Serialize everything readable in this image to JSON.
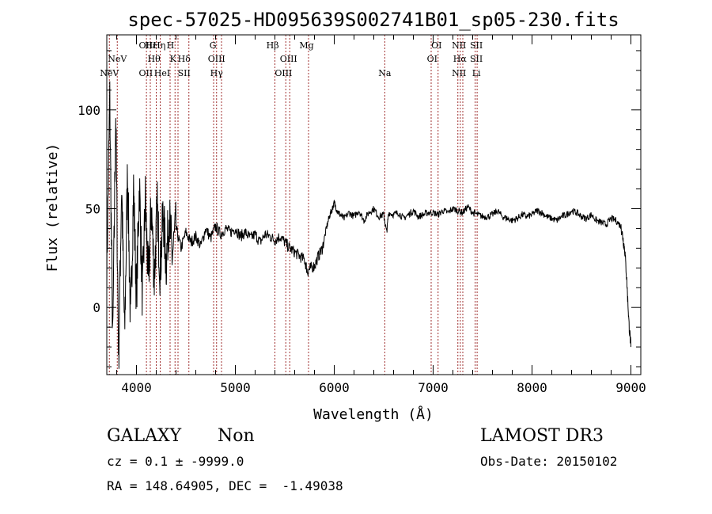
{
  "chart_data": {
    "type": "line",
    "title": "spec-57025-HD095639S002741B01_sp05-230.fits",
    "xlabel": "Wavelength (Å)",
    "ylabel": "Flux (relative)",
    "xlim": [
      3700,
      9100
    ],
    "ylim": [
      -34,
      138
    ],
    "xticks": [
      {
        "value": 4000,
        "label": "4000"
      },
      {
        "value": 5000,
        "label": "5000"
      },
      {
        "value": 6000,
        "label": "6000"
      },
      {
        "value": 7000,
        "label": "7000"
      },
      {
        "value": 8000,
        "label": "8000"
      },
      {
        "value": 9000,
        "label": "9000"
      }
    ],
    "yticks": [
      {
        "value": 0,
        "label": "0"
      },
      {
        "value": 50,
        "label": "50"
      },
      {
        "value": 100,
        "label": "100"
      }
    ],
    "grid": false,
    "line_color": "#000000",
    "marker_color": "#a03030",
    "series": [
      {
        "x": [
          3700,
          3730,
          3760,
          3790,
          3820,
          3850,
          3880,
          3910,
          3940,
          3970,
          4000,
          4030,
          4060,
          4090,
          4120,
          4150,
          4180,
          4210,
          4240,
          4270,
          4300,
          4330,
          4360,
          4400,
          4450,
          4500,
          4550,
          4600,
          4650,
          4700,
          4750,
          4800,
          4850,
          4900,
          4950,
          5000,
          5050,
          5100,
          5150,
          5200,
          5250,
          5300,
          5350,
          5400,
          5450,
          5500,
          5550,
          5600,
          5650,
          5700,
          5730,
          5760,
          5800,
          5840,
          5880,
          5920,
          5950,
          5980,
          6000,
          6030,
          6060,
          6100,
          6150,
          6200,
          6250,
          6300,
          6350,
          6400,
          6450,
          6500,
          6530,
          6550,
          6600,
          6650,
          6700,
          6750,
          6800,
          6850,
          6900,
          6950,
          7000,
          7050,
          7100,
          7150,
          7200,
          7250,
          7300,
          7350,
          7400,
          7450,
          7500,
          7550,
          7600,
          7650,
          7700,
          7750,
          7800,
          7850,
          7900,
          7950,
          8000,
          8050,
          8100,
          8150,
          8200,
          8250,
          8300,
          8350,
          8400,
          8450,
          8500,
          8550,
          8600,
          8650,
          8700,
          8750,
          8800,
          8850,
          8900,
          8920,
          8940,
          8960,
          8980,
          9000
        ],
        "y": [
          20,
          105,
          -20,
          98,
          -25,
          62,
          -15,
          70,
          -10,
          60,
          5,
          62,
          5,
          55,
          12,
          52,
          15,
          50,
          18,
          48,
          22,
          47,
          26,
          40,
          30,
          38,
          33,
          36,
          31,
          40,
          35,
          41,
          37,
          40,
          38,
          40,
          36,
          38,
          35,
          37,
          33,
          37,
          36,
          34,
          36,
          33,
          30,
          28,
          26,
          24,
          18,
          20,
          21,
          26,
          30,
          40,
          46,
          50,
          53,
          49,
          47,
          45,
          48,
          46,
          49,
          44,
          48,
          50,
          46,
          47,
          38,
          48,
          47,
          48,
          45,
          47,
          49,
          46,
          47,
          48,
          48,
          47,
          49,
          48,
          50,
          49,
          48,
          51,
          48,
          47,
          46,
          46,
          47,
          49,
          46,
          45,
          44,
          45,
          47,
          46,
          47,
          49,
          48,
          46,
          45,
          44,
          46,
          47,
          49,
          48,
          46,
          45,
          47,
          44,
          43,
          42,
          45,
          44,
          41,
          35,
          28,
          12,
          -8,
          -20
        ]
      }
    ],
    "lines": [
      {
        "label": "NeV",
        "wavelength": 3726,
        "row": 2
      },
      {
        "label": "NeV",
        "wavelength": 3806,
        "row": 1
      },
      {
        "label": "OII",
        "wavelength": 4095,
        "row": 0
      },
      {
        "label": "OII",
        "wavelength": 4095,
        "row": 2
      },
      {
        "label": "Hε",
        "wavelength": 4145,
        "row": 0
      },
      {
        "label": "Hθ",
        "wavelength": 4177,
        "row": 1
      },
      {
        "label": "Hη",
        "wavelength": 4230,
        "row": 0
      },
      {
        "label": "HeI",
        "wavelength": 4260,
        "row": 2
      },
      {
        "label": "H",
        "wavelength": 4343,
        "row": 0
      },
      {
        "label": "K",
        "wavelength": 4370,
        "row": 1
      },
      {
        "label": "Hδ",
        "wavelength": 4482,
        "row": 1
      },
      {
        "label": "SII",
        "wavelength": 4482,
        "row": 2
      },
      {
        "label": "G",
        "wavelength": 4773,
        "row": 0
      },
      {
        "label": "OIII",
        "wavelength": 4810,
        "row": 1
      },
      {
        "label": "Hγ",
        "wavelength": 4810,
        "row": 2
      },
      {
        "label": "Hβ",
        "wavelength": 5377,
        "row": 0
      },
      {
        "label": "OIII",
        "wavelength": 5538,
        "row": 1
      },
      {
        "label": "OIII",
        "wavelength": 5487,
        "row": 2
      },
      {
        "label": "Mg",
        "wavelength": 5720,
        "row": 0
      },
      {
        "label": "Na",
        "wavelength": 6511,
        "row": 2
      },
      {
        "label": "OI",
        "wavelength": 7034,
        "row": 0
      },
      {
        "label": "OI",
        "wavelength": 6990,
        "row": 1
      },
      {
        "label": "NII",
        "wavelength": 7262,
        "row": 0
      },
      {
        "label": "Hα",
        "wavelength": 7270,
        "row": 1
      },
      {
        "label": "NII",
        "wavelength": 7262,
        "row": 2
      },
      {
        "label": "SII",
        "wavelength": 7437,
        "row": 0
      },
      {
        "label": "SII",
        "wavelength": 7437,
        "row": 1
      },
      {
        "label": "Li",
        "wavelength": 7437,
        "row": 2
      }
    ],
    "line_positions": [
      3726,
      3806,
      4101,
      4140,
      4200,
      4240,
      4340,
      4390,
      4420,
      4530,
      4780,
      4810,
      4860,
      5400,
      5510,
      5550,
      5740,
      6511,
      6980,
      7050,
      7250,
      7275,
      7300,
      7425,
      7445
    ]
  },
  "info": {
    "class": "GALAXY",
    "subclass": "Non",
    "survey": "LAMOST DR3",
    "cz": "cz = 0.1 ± -9999.0",
    "obsdate": "Obs-Date: 20150102",
    "radec": "RA = 148.64905, DEC =  -1.49038"
  }
}
